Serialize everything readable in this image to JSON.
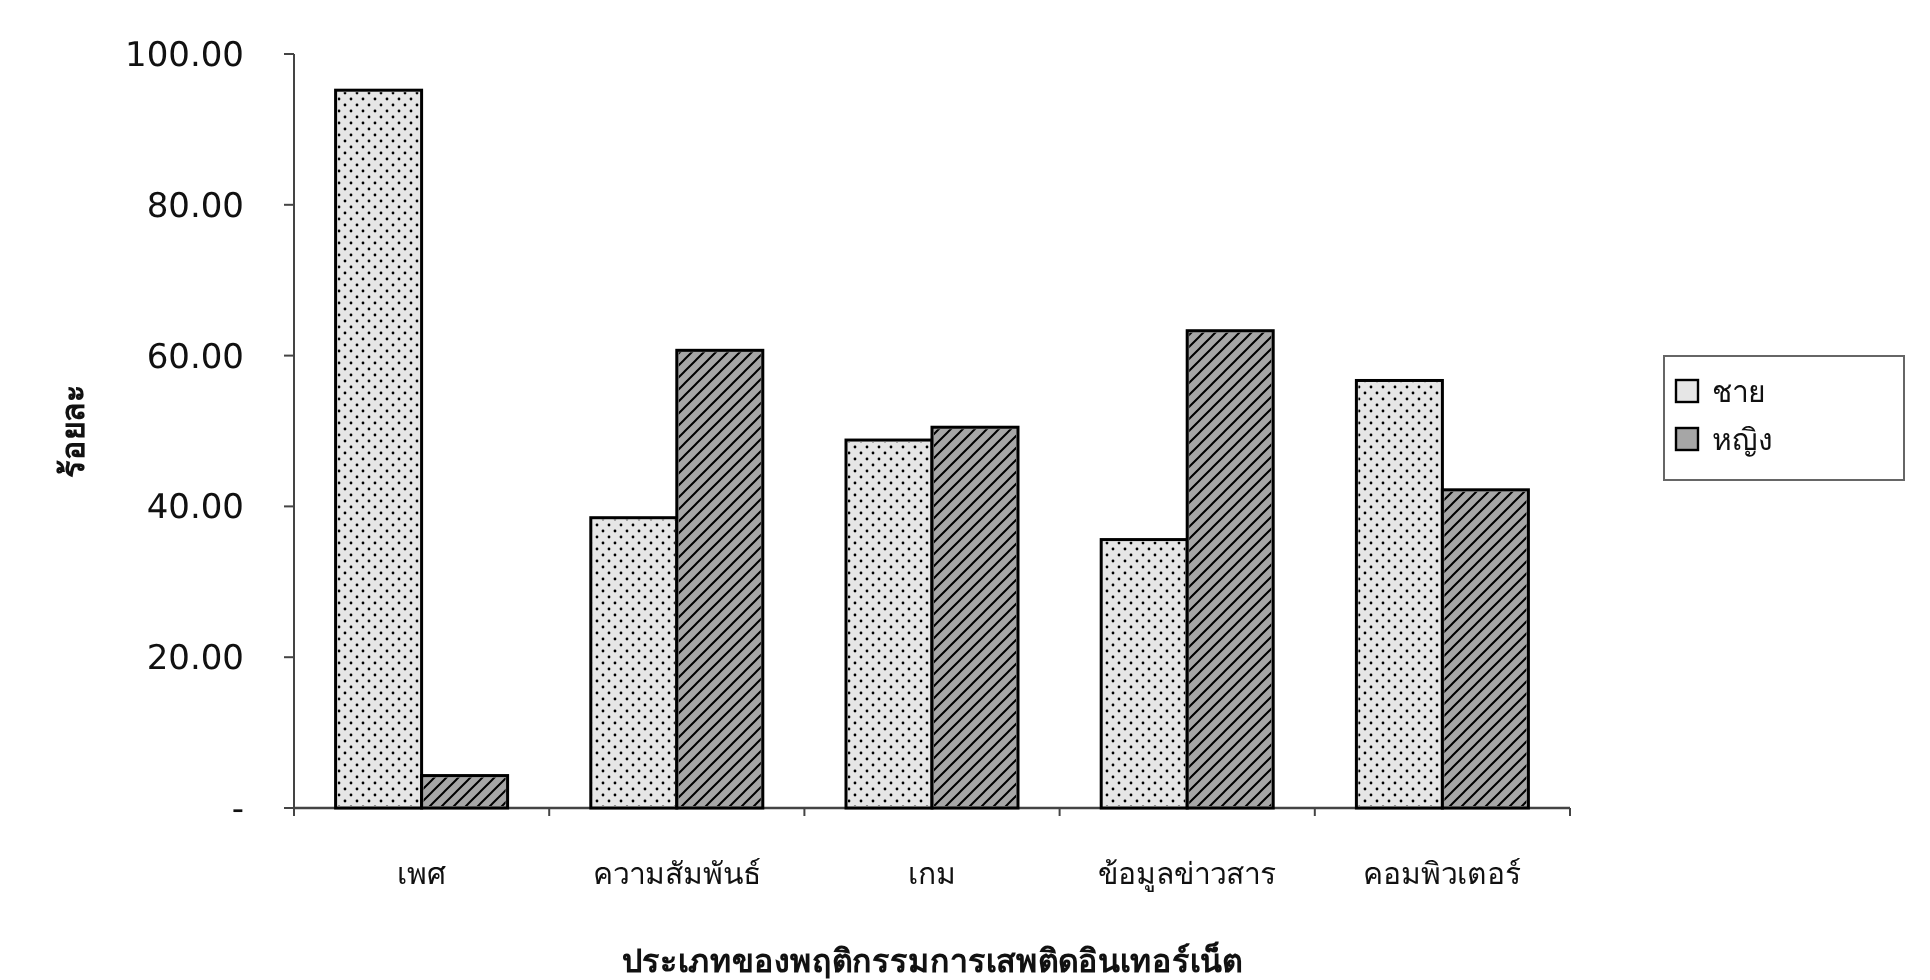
{
  "chart_data": {
    "type": "bar",
    "xlabel": "ประเภทของพฤติกรรมการเสพติดอินเทอร์เน็ต",
    "ylabel": "ร้อยละ",
    "categories": [
      "เพศ",
      "ความสัมพันธ์",
      "เกม",
      "ข้อมูลข่าวสาร",
      "คอมพิวเตอร์"
    ],
    "series": [
      {
        "name": "ชาย",
        "color": "#e6e6e6",
        "values": [
          95.2,
          38.5,
          48.8,
          35.6,
          56.7
        ]
      },
      {
        "name": "หญิง",
        "color": "#a6a6a6",
        "values": [
          4.3,
          60.7,
          50.5,
          63.3,
          42.2
        ]
      }
    ],
    "ylim": [
      0,
      100
    ],
    "yticks": [
      {
        "value": 0,
        "label": "-"
      },
      {
        "value": 20,
        "label": "20.00"
      },
      {
        "value": 40,
        "label": "40.00"
      },
      {
        "value": 60,
        "label": "60.00"
      },
      {
        "value": 80,
        "label": "80.00"
      },
      {
        "value": 100,
        "label": "100.00"
      }
    ],
    "legend": "right"
  }
}
